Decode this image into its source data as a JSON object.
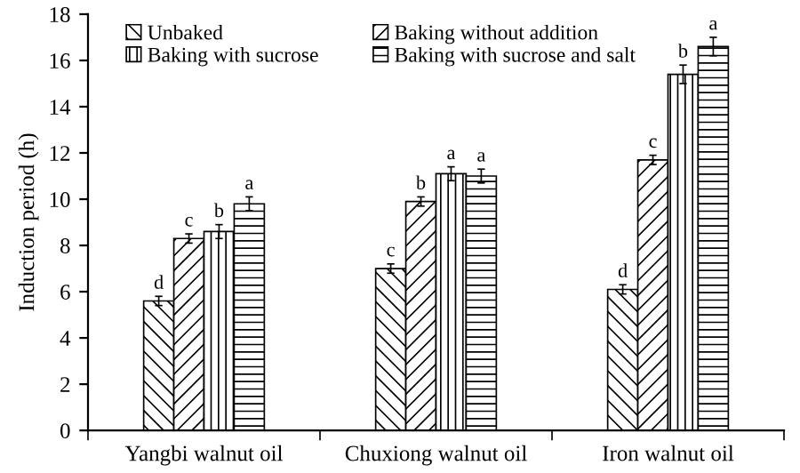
{
  "chart_data": {
    "type": "bar",
    "ylabel": "Induction period (h)",
    "categories": [
      "Yangbi walnut oil",
      "Chuxiong walnut oil",
      "Iron walnut oil"
    ],
    "series": [
      {
        "name": "Unbaked",
        "color": "#000000",
        "values": [
          5.6,
          7.0,
          6.1
        ],
        "errors": [
          0.2,
          0.2,
          0.2
        ],
        "value_labels": [
          "d",
          "c",
          "d"
        ]
      },
      {
        "name": "Baking without addition",
        "color": "#000000",
        "values": [
          8.3,
          9.9,
          11.7
        ],
        "errors": [
          0.2,
          0.2,
          0.2
        ],
        "value_labels": [
          "c",
          "b",
          "c"
        ]
      },
      {
        "name": "Baking with sucrose",
        "color": "#000000",
        "values": [
          8.6,
          11.1,
          15.4
        ],
        "errors": [
          0.3,
          0.3,
          0.4
        ],
        "value_labels": [
          "b",
          "a",
          "b"
        ]
      },
      {
        "name": "Baking with sucrose and salt",
        "color": "#000000",
        "values": [
          9.8,
          11.0,
          16.6
        ],
        "errors": [
          0.3,
          0.3,
          0.4
        ],
        "value_labels": [
          "a",
          "a",
          "a"
        ]
      }
    ],
    "ylim": [
      0,
      18
    ],
    "yticks": [
      0,
      2,
      4,
      6,
      8,
      10,
      12,
      14,
      16,
      18
    ],
    "grid": false,
    "legend": "top"
  }
}
